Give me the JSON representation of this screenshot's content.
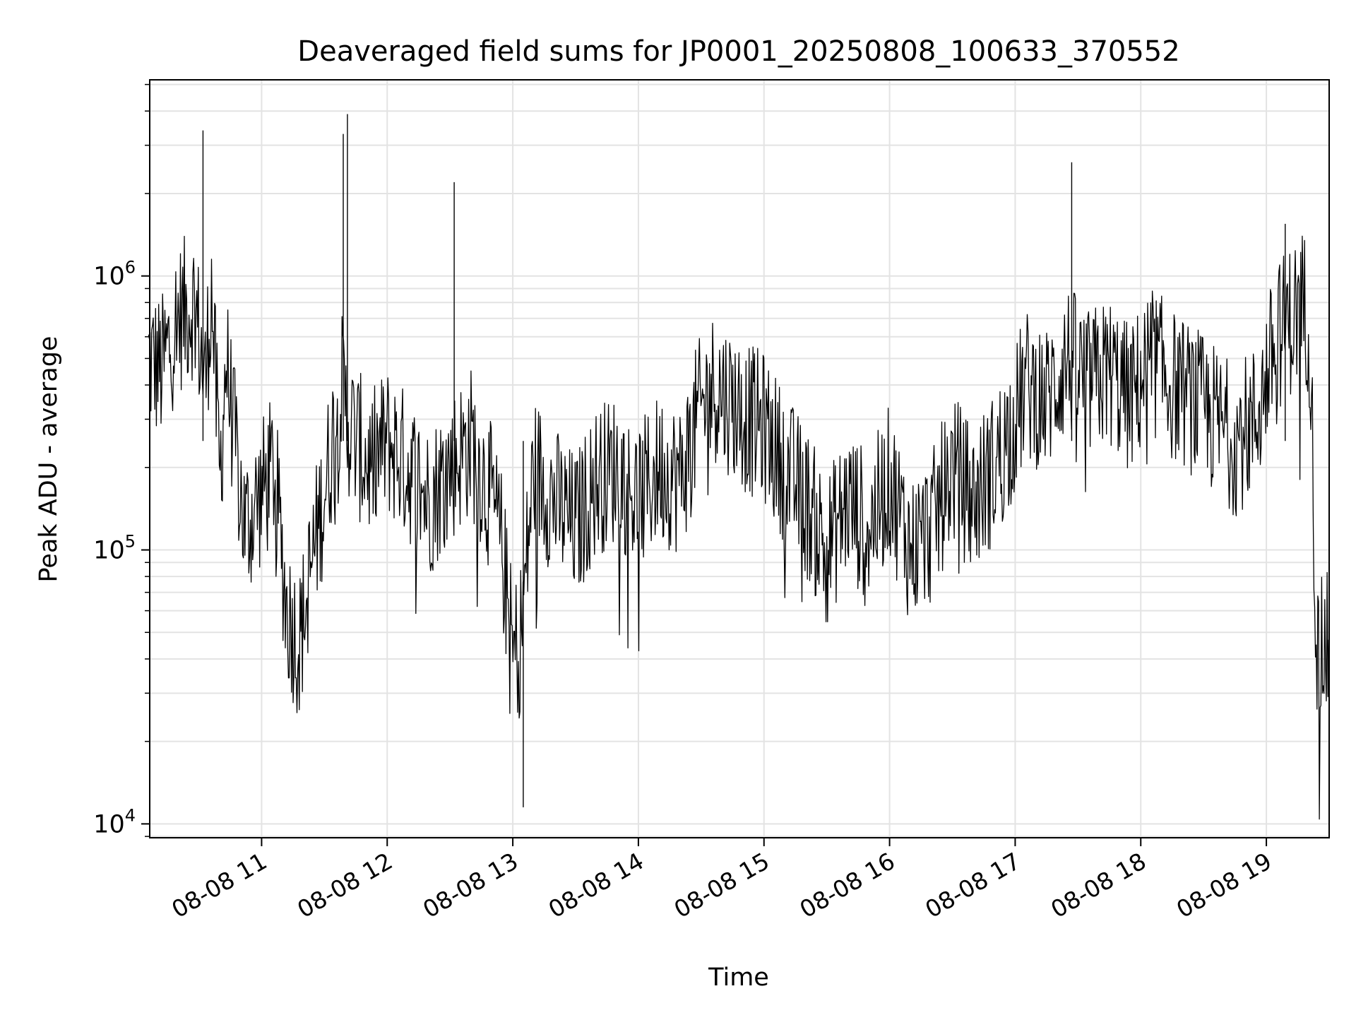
{
  "chart_data": {
    "type": "line",
    "title": "Deaveraged field sums for JP0001_20250808_100633_370552",
    "xlabel": "Time",
    "ylabel": "Peak ADU - average",
    "yscale": "log",
    "ylim": [
      8900,
      5200000
    ],
    "xlim": [
      "2025-08-08 10:06:33",
      "2025-08-08 19:30:00"
    ],
    "x_ticks": [
      "2025-08-08 11:00",
      "2025-08-08 12:00",
      "2025-08-08 13:00",
      "2025-08-08 14:00",
      "2025-08-08 15:00",
      "2025-08-08 16:00",
      "2025-08-08 17:00",
      "2025-08-08 18:00",
      "2025-08-08 19:00"
    ],
    "x_tick_labels": [
      "08-08 11",
      "08-08 12",
      "08-08 13",
      "08-08 14",
      "08-08 15",
      "08-08 16",
      "08-08 17",
      "08-08 18",
      "08-08 19"
    ],
    "y_ticks": [
      10000,
      100000,
      1000000
    ],
    "y_tick_labels": [
      {
        "base": "10",
        "exp": "4"
      },
      {
        "base": "10",
        "exp": "5"
      },
      {
        "base": "10",
        "exp": "6"
      }
    ],
    "grid": true,
    "line_color": "#000000",
    "series": [
      {
        "x": [
          "2025-08-08 10:06",
          "2025-08-08 10:12",
          "2025-08-08 10:20",
          "2025-08-08 10:28",
          "2025-08-08 10:33",
          "2025-08-08 10:36",
          "2025-08-08 10:40",
          "2025-08-08 10:43",
          "2025-08-08 10:47",
          "2025-08-08 10:52",
          "2025-08-08 10:58",
          "2025-08-08 11:06",
          "2025-08-08 11:12",
          "2025-08-08 11:18",
          "2025-08-08 11:24",
          "2025-08-08 11:32",
          "2025-08-08 11:38",
          "2025-08-08 11:41",
          "2025-08-08 11:45",
          "2025-08-08 11:52",
          "2025-08-08 12:00",
          "2025-08-08 12:10",
          "2025-08-08 12:20",
          "2025-08-08 12:30",
          "2025-08-08 12:40",
          "2025-08-08 12:50",
          "2025-08-08 12:55",
          "2025-08-08 13:00",
          "2025-08-08 13:04",
          "2025-08-08 13:10",
          "2025-08-08 13:20",
          "2025-08-08 13:30",
          "2025-08-08 13:40",
          "2025-08-08 13:50",
          "2025-08-08 14:00",
          "2025-08-08 14:10",
          "2025-08-08 14:20",
          "2025-08-08 14:28",
          "2025-08-08 14:36",
          "2025-08-08 14:44",
          "2025-08-08 14:52",
          "2025-08-08 15:00",
          "2025-08-08 15:10",
          "2025-08-08 15:20",
          "2025-08-08 15:30",
          "2025-08-08 15:40",
          "2025-08-08 15:50",
          "2025-08-08 16:00",
          "2025-08-08 16:10",
          "2025-08-08 16:20",
          "2025-08-08 16:30",
          "2025-08-08 16:40",
          "2025-08-08 16:50",
          "2025-08-08 17:00",
          "2025-08-08 17:05",
          "2025-08-08 17:15",
          "2025-08-08 17:25",
          "2025-08-08 17:35",
          "2025-08-08 17:45",
          "2025-08-08 17:55",
          "2025-08-08 18:05",
          "2025-08-08 18:15",
          "2025-08-08 18:25",
          "2025-08-08 18:35",
          "2025-08-08 18:45",
          "2025-08-08 18:55",
          "2025-08-08 19:05",
          "2025-08-08 19:12",
          "2025-08-08 19:18",
          "2025-08-08 19:21",
          "2025-08-08 19:24",
          "2025-08-08 19:30"
        ],
        "y": [
          500000,
          450000,
          700000,
          800000,
          400000,
          900000,
          180000,
          500000,
          250000,
          120000,
          150000,
          200000,
          60000,
          45000,
          90000,
          200000,
          400000,
          300000,
          250000,
          200000,
          250000,
          200000,
          150000,
          200000,
          250000,
          150000,
          100000,
          40000,
          50000,
          200000,
          150000,
          120000,
          180000,
          200000,
          150000,
          200000,
          180000,
          300000,
          400000,
          350000,
          300000,
          280000,
          200000,
          150000,
          100000,
          150000,
          120000,
          180000,
          100000,
          120000,
          200000,
          150000,
          200000,
          300000,
          400000,
          350000,
          500000,
          400000,
          450000,
          350000,
          500000,
          400000,
          350000,
          300000,
          250000,
          300000,
          600000,
          700000,
          800000,
          600000,
          40000,
          45000
        ]
      }
    ],
    "annotated_extremes": [
      {
        "x": "2025-08-08 10:32",
        "y": 3400000
      },
      {
        "x": "2025-08-08 11:39",
        "y": 3300000
      },
      {
        "x": "2025-08-08 11:41",
        "y": 3900000
      },
      {
        "x": "2025-08-08 12:32",
        "y": 2200000
      },
      {
        "x": "2025-08-08 13:05",
        "y": 11500
      },
      {
        "x": "2025-08-08 17:27",
        "y": 2600000
      },
      {
        "x": "2025-08-08 19:09",
        "y": 1550000
      }
    ]
  }
}
